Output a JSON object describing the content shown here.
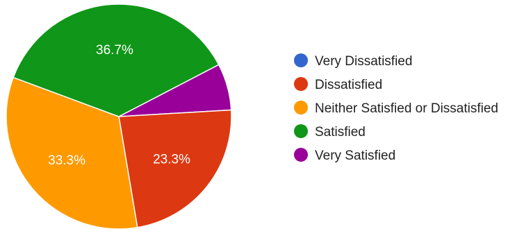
{
  "chart_data": {
    "type": "pie",
    "title": "",
    "legend_position": "right",
    "categories": [
      "Very Dissatisfied",
      "Dissatisfied",
      "Neither Satisfied or Dissatisfied",
      "Satisfied",
      "Very Satisfied"
    ],
    "values": [
      0,
      23.3,
      33.3,
      36.7,
      6.7
    ],
    "value_labels": [
      "",
      "23.3%",
      "33.3%",
      "36.7%",
      ""
    ],
    "colors": [
      "#3366cc",
      "#dc3912",
      "#ff9900",
      "#109618",
      "#990099"
    ]
  }
}
